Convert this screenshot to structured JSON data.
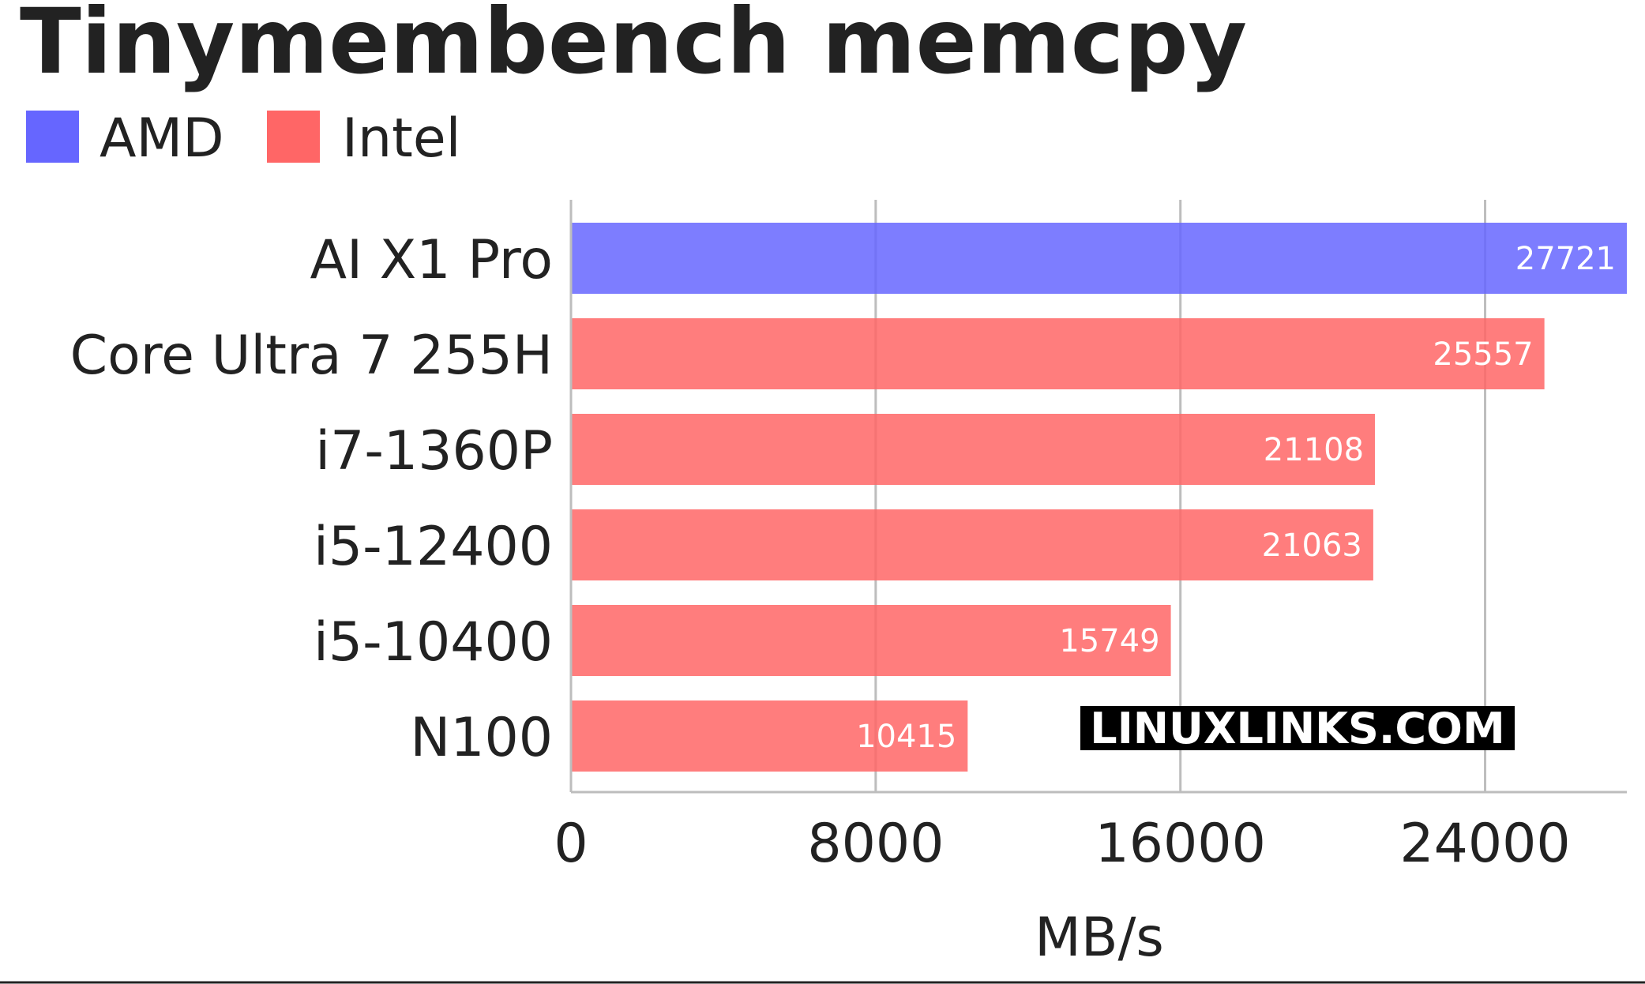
{
  "chart_data": {
    "type": "bar",
    "orientation": "horizontal",
    "title": "Tinymembench memcpy",
    "xlabel": "MB/s",
    "ylabel": "",
    "xlim": [
      0,
      27721
    ],
    "xticks": [
      0,
      8000,
      16000,
      24000
    ],
    "grid": true,
    "legend": {
      "placement": "top-left",
      "entries": [
        {
          "name": "AMD",
          "color": "#6666ff"
        },
        {
          "name": "Intel",
          "color": "#ff6666"
        }
      ]
    },
    "categories": [
      "AI X1 Pro",
      "Core Ultra 7 255H",
      "i7-1360P",
      "i5-12400",
      "i5-10400",
      "N100"
    ],
    "values": [
      27721,
      25557,
      21108,
      21063,
      15749,
      10415
    ],
    "vendors": [
      "AMD",
      "Intel",
      "Intel",
      "Intel",
      "Intel",
      "Intel"
    ],
    "watermark": "LINUXLINKS.COM"
  }
}
